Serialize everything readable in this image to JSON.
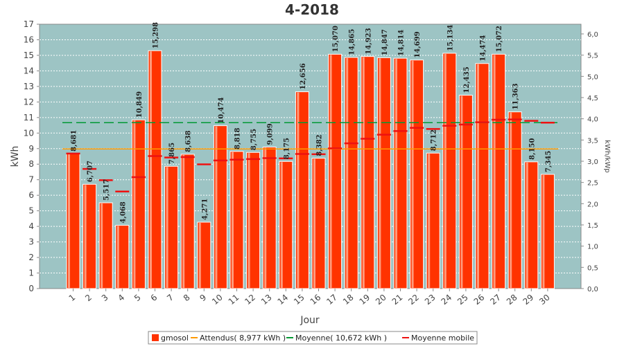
{
  "chart_data": {
    "type": "bar",
    "title": "4-2018",
    "xlabel": "Jour",
    "ylabel": "kWh",
    "y2label": "kWh/kWp",
    "ylim": [
      0,
      17
    ],
    "y2lim": [
      0,
      6.2
    ],
    "y_ticks": [
      "0",
      "1",
      "2",
      "3",
      "4",
      "5",
      "6",
      "7",
      "8",
      "9",
      "10",
      "11",
      "12",
      "13",
      "14",
      "15",
      "16",
      "17"
    ],
    "y2_ticks": [
      "0,0",
      "0,5",
      "1,0",
      "1,5",
      "2,0",
      "2,5",
      "3,0",
      "3,5",
      "4,0",
      "4,5",
      "5,0",
      "5,5",
      "6,0"
    ],
    "categories": [
      "1",
      "2",
      "3",
      "4",
      "5",
      "6",
      "7",
      "8",
      "9",
      "10",
      "11",
      "12",
      "13",
      "14",
      "15",
      "16",
      "17",
      "18",
      "19",
      "20",
      "21",
      "22",
      "23",
      "24",
      "25",
      "26",
      "27",
      "28",
      "29",
      "30"
    ],
    "series": [
      {
        "name": "gmosol",
        "type": "bar",
        "color": "#ff3300",
        "values": [
          8.681,
          6.707,
          5.517,
          4.068,
          10.849,
          15.298,
          7.865,
          8.638,
          4.271,
          10.474,
          8.818,
          8.755,
          9.099,
          8.175,
          12.656,
          8.382,
          15.07,
          14.865,
          14.923,
          14.847,
          14.814,
          14.699,
          8.712,
          15.134,
          12.435,
          14.474,
          15.072,
          11.363,
          8.15,
          7.345
        ],
        "labels": [
          "8,681",
          "6,707",
          "5,517",
          "4,068",
          "10,849",
          "15,298",
          "7,865",
          "8,638",
          "4,271",
          "10,474",
          "8,818",
          "8,755",
          "9,099",
          "8,175",
          "12,656",
          "8,382",
          "15,070",
          "14,865",
          "14,923",
          "14,847",
          "14,814",
          "14,699",
          "8,712",
          "15,134",
          "12,435",
          "14,474",
          "15,072",
          "11,363",
          "8,150",
          "7,345"
        ]
      },
      {
        "name": "Attendus( 8,977 kWh )",
        "type": "hline",
        "color": "#ff9900",
        "value": 8.977,
        "dash": "none"
      },
      {
        "name": "Moyenne( 10,672 kWh )",
        "type": "hline",
        "color": "#009933",
        "value": 10.672,
        "dash": "14,6"
      },
      {
        "name": "Moyenne mobile",
        "type": "marker",
        "color": "#ee1111",
        "values": [
          8.681,
          7.694,
          6.968,
          6.243,
          7.164,
          8.52,
          8.426,
          8.453,
          7.988,
          8.237,
          8.289,
          8.328,
          8.387,
          8.371,
          8.657,
          8.639,
          9.016,
          9.341,
          9.635,
          9.896,
          10.13,
          10.337,
          10.266,
          10.469,
          10.547,
          10.698,
          10.86,
          10.878,
          10.784,
          10.67
        ]
      }
    ],
    "legend_position": "bottom",
    "grid": true
  }
}
